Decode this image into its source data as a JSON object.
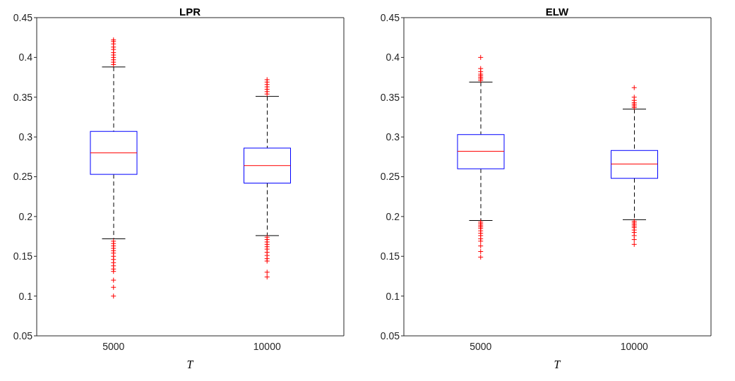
{
  "chart_data": [
    {
      "type": "box",
      "title": "LPR",
      "xlabel": "T",
      "categories": [
        "5000",
        "10000"
      ],
      "color": "#0000ff",
      "boxes": [
        {
          "low": 0.172,
          "q1": 0.253,
          "median": 0.28,
          "q3": 0.307,
          "high": 0.388,
          "outliers": [
            0.391,
            0.394,
            0.397,
            0.4,
            0.403,
            0.406,
            0.41,
            0.413,
            0.417,
            0.42,
            0.422,
            0.169,
            0.166,
            0.163,
            0.16,
            0.157,
            0.154,
            0.15,
            0.146,
            0.142,
            0.138,
            0.134,
            0.131,
            0.12,
            0.111,
            0.1
          ]
        },
        {
          "low": 0.176,
          "q1": 0.242,
          "median": 0.264,
          "q3": 0.286,
          "high": 0.351,
          "outliers": [
            0.354,
            0.357,
            0.36,
            0.363,
            0.366,
            0.369,
            0.372,
            0.174,
            0.171,
            0.168,
            0.165,
            0.162,
            0.159,
            0.155,
            0.151,
            0.147,
            0.144,
            0.13,
            0.124
          ]
        }
      ],
      "ylim": [
        0.05,
        0.45
      ],
      "yticks": [
        0.05,
        0.1,
        0.15,
        0.2,
        0.25,
        0.3,
        0.35,
        0.4,
        0.45
      ]
    },
    {
      "type": "box",
      "title": "ELW",
      "xlabel": "T",
      "categories": [
        "5000",
        "10000"
      ],
      "color": "#0000ff",
      "boxes": [
        {
          "low": 0.195,
          "q1": 0.26,
          "median": 0.282,
          "q3": 0.303,
          "high": 0.369,
          "outliers": [
            0.371,
            0.373,
            0.375,
            0.377,
            0.379,
            0.382,
            0.386,
            0.4,
            0.193,
            0.191,
            0.189,
            0.187,
            0.185,
            0.182,
            0.179,
            0.176,
            0.172,
            0.169,
            0.163,
            0.156,
            0.149
          ]
        },
        {
          "low": 0.196,
          "q1": 0.248,
          "median": 0.266,
          "q3": 0.283,
          "high": 0.335,
          "outliers": [
            0.337,
            0.339,
            0.341,
            0.343,
            0.346,
            0.35,
            0.362,
            0.194,
            0.192,
            0.19,
            0.188,
            0.186,
            0.183,
            0.18,
            0.176,
            0.171,
            0.165
          ]
        }
      ],
      "ylim": [
        0.05,
        0.45
      ],
      "yticks": [
        0.05,
        0.1,
        0.15,
        0.2,
        0.25,
        0.3,
        0.35,
        0.4,
        0.45
      ]
    }
  ]
}
